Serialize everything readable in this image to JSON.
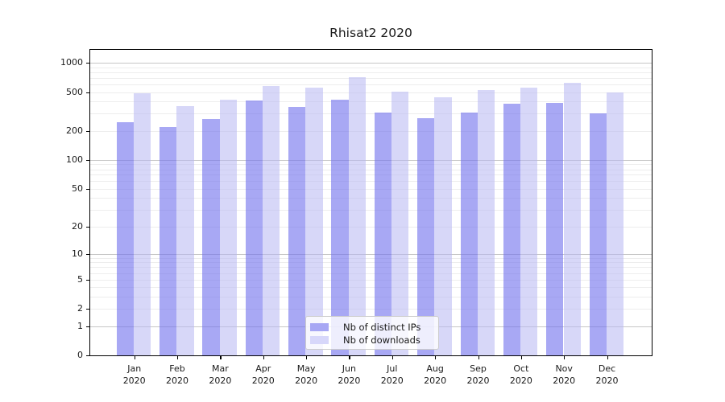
{
  "chart_data": {
    "type": "bar",
    "title": "Rhisat2 2020",
    "categories": [
      "Jan 2020",
      "Feb 2020",
      "Mar 2020",
      "Apr 2020",
      "May 2020",
      "Jun 2020",
      "Jul 2020",
      "Aug 2020",
      "Sep 2020",
      "Oct 2020",
      "Nov 2020",
      "Dec 2020"
    ],
    "series": [
      {
        "name": "Nb of distinct IPs",
        "color": "#a7a7f4",
        "fill_rgba": "rgba(114,114,237,0.62)",
        "values": [
          245,
          220,
          265,
          410,
          350,
          420,
          310,
          270,
          305,
          380,
          390,
          300
        ]
      },
      {
        "name": "Nb of downloads",
        "color": "#d7d7fa",
        "fill_rgba": "rgba(183,183,242,0.55)",
        "values": [
          490,
          360,
          415,
          575,
          550,
          710,
          505,
          440,
          520,
          555,
          625,
          500
        ]
      }
    ],
    "xlabel": "",
    "ylabel": "",
    "yscale": "log1p",
    "y_ticks": [
      0,
      1,
      2,
      5,
      10,
      20,
      50,
      100,
      200,
      500,
      1000
    ],
    "ylim": [
      0,
      1355
    ],
    "grid": true,
    "grid_major_color": "#c6c6c6",
    "grid_minor_color": "#ededed",
    "legend_position": "lower center",
    "background_color": "#ffffff",
    "text_color": "#1a1a1a"
  }
}
